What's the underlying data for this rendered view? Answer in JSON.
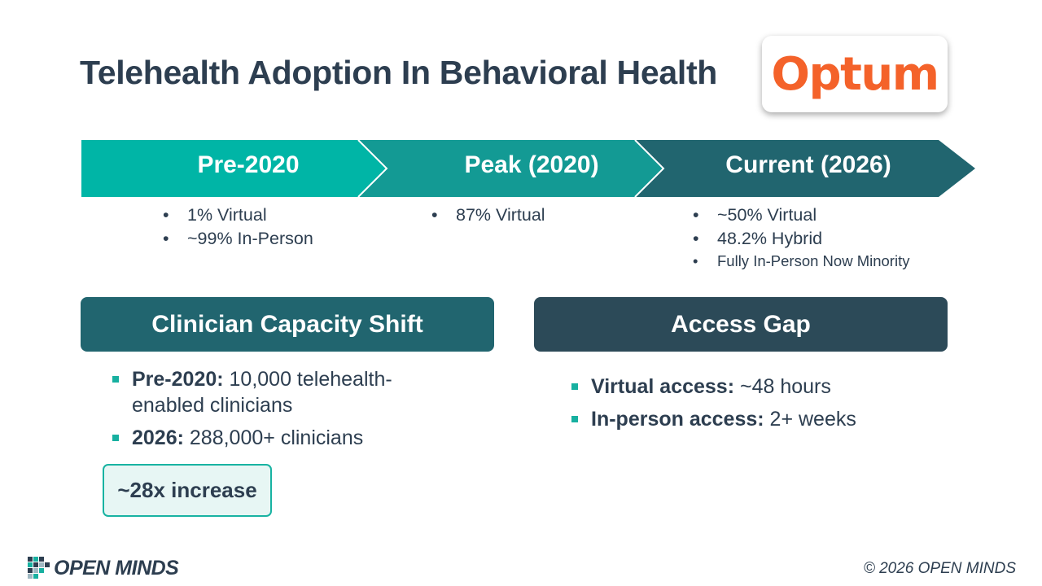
{
  "title": "Telehealth Adoption In Behavioral Health",
  "logo": {
    "text": "Optum",
    "color": "#f4622a"
  },
  "timeline": [
    {
      "label": "Pre-2020",
      "color": "#00b5a6",
      "bullets": [
        "1% Virtual",
        "~99% In-Person"
      ]
    },
    {
      "label": "Peak (2020)",
      "color": "#139a94",
      "bullets": [
        "87% Virtual"
      ]
    },
    {
      "label": "Current (2026)",
      "color": "#21656f",
      "bullets": [
        "~50% Virtual",
        "48.2% Hybrid"
      ],
      "small_bullets": [
        "Fully In-Person Now Minority"
      ]
    }
  ],
  "sections": {
    "capacity": {
      "title": "Clinician Capacity Shift",
      "items": [
        {
          "bold": "Pre-2020:",
          "text": " 10,000 telehealth-enabled clinicians"
        },
        {
          "bold": "2026:",
          "text": " 288,000+ clinicians"
        }
      ],
      "callout": "~28x increase"
    },
    "access": {
      "title": "Access Gap",
      "items": [
        {
          "bold": "Virtual access:",
          "text": " ~48 hours"
        },
        {
          "bold": "In-person access:",
          "text": " 2+ weeks"
        }
      ]
    }
  },
  "footer": {
    "logo_text": "OPEN MINDS",
    "copyright": "© 2026 OPEN MINDS"
  }
}
